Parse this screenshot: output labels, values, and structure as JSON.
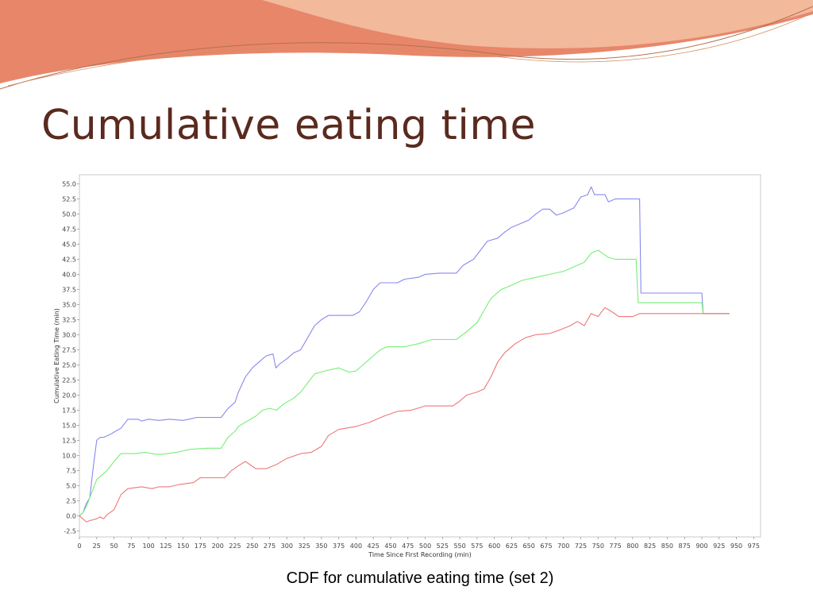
{
  "slide": {
    "title": "Cumulative eating time",
    "caption": "CDF for cumulative eating time (set 2)"
  },
  "theme": {
    "title_color": "#5a2a1e",
    "accent_dark": "#e8866a",
    "accent_light": "#f2b99b"
  },
  "chart_data": {
    "type": "line",
    "title": "",
    "xlabel": "Time Since First Recording (min)",
    "ylabel": "Cumulative Eating Time (min)",
    "xlim": [
      0,
      985
    ],
    "ylim": [
      -3.5,
      56.5
    ],
    "grid": false,
    "legend": "none",
    "x_ticks": [
      0,
      25,
      50,
      75,
      100,
      125,
      150,
      175,
      200,
      225,
      250,
      275,
      300,
      325,
      350,
      375,
      400,
      425,
      450,
      475,
      500,
      525,
      550,
      575,
      600,
      625,
      650,
      675,
      700,
      725,
      750,
      775,
      800,
      825,
      850,
      875,
      900,
      925,
      950,
      975
    ],
    "y_ticks": [
      -2.5,
      0.0,
      2.5,
      5.0,
      7.5,
      10.0,
      12.5,
      15.0,
      17.5,
      20.0,
      22.5,
      25.0,
      27.5,
      30.0,
      32.5,
      35.0,
      37.5,
      40.0,
      42.5,
      45.0,
      47.5,
      50.0,
      52.5,
      55.0
    ],
    "series": [
      {
        "color": "#8888ee",
        "points": [
          [
            0,
            0
          ],
          [
            5,
            0.5
          ],
          [
            10,
            2
          ],
          [
            15,
            3
          ],
          [
            20,
            8
          ],
          [
            25,
            12.5
          ],
          [
            30,
            13
          ],
          [
            35,
            13
          ],
          [
            45,
            13.5
          ],
          [
            55,
            14.2
          ],
          [
            60,
            14.5
          ],
          [
            70,
            16
          ],
          [
            85,
            16
          ],
          [
            90,
            15.7
          ],
          [
            100,
            16
          ],
          [
            115,
            15.8
          ],
          [
            130,
            16
          ],
          [
            150,
            15.8
          ],
          [
            170,
            16.3
          ],
          [
            205,
            16.3
          ],
          [
            215,
            17.8
          ],
          [
            225,
            18.8
          ],
          [
            230,
            20.5
          ],
          [
            240,
            23
          ],
          [
            250,
            24.5
          ],
          [
            260,
            25.5
          ],
          [
            270,
            26.5
          ],
          [
            280,
            26.8
          ],
          [
            284,
            24.5
          ],
          [
            290,
            25.2
          ],
          [
            300,
            26
          ],
          [
            310,
            27
          ],
          [
            320,
            27.5
          ],
          [
            330,
            29.5
          ],
          [
            340,
            31.5
          ],
          [
            350,
            32.5
          ],
          [
            360,
            33.2
          ],
          [
            380,
            33.2
          ],
          [
            395,
            33.2
          ],
          [
            405,
            33.8
          ],
          [
            415,
            35.5
          ],
          [
            425,
            37.5
          ],
          [
            435,
            38.6
          ],
          [
            450,
            38.6
          ],
          [
            460,
            38.6
          ],
          [
            470,
            39.2
          ],
          [
            490,
            39.5
          ],
          [
            500,
            40
          ],
          [
            520,
            40.2
          ],
          [
            545,
            40.2
          ],
          [
            555,
            41.5
          ],
          [
            570,
            42.5
          ],
          [
            580,
            44
          ],
          [
            590,
            45.5
          ],
          [
            605,
            46
          ],
          [
            615,
            47
          ],
          [
            625,
            47.8
          ],
          [
            640,
            48.5
          ],
          [
            650,
            49
          ],
          [
            660,
            50
          ],
          [
            670,
            50.8
          ],
          [
            680,
            50.8
          ],
          [
            690,
            49.8
          ],
          [
            700,
            50.2
          ],
          [
            715,
            51
          ],
          [
            725,
            52.8
          ],
          [
            735,
            53.2
          ],
          [
            740,
            54.5
          ],
          [
            745,
            53.2
          ],
          [
            760,
            53.2
          ],
          [
            765,
            52
          ],
          [
            775,
            52.5
          ],
          [
            810,
            52.5
          ],
          [
            812,
            36.9
          ],
          [
            900,
            36.9
          ],
          [
            902,
            33.5
          ],
          [
            940,
            33.5
          ]
        ]
      },
      {
        "color": "#77ee77",
        "points": [
          [
            0,
            0
          ],
          [
            5,
            0.5
          ],
          [
            10,
            1.5
          ],
          [
            15,
            3
          ],
          [
            20,
            4.5
          ],
          [
            25,
            6
          ],
          [
            30,
            6.5
          ],
          [
            40,
            7.5
          ],
          [
            50,
            9
          ],
          [
            60,
            10.3
          ],
          [
            80,
            10.3
          ],
          [
            95,
            10.5
          ],
          [
            110,
            10.2
          ],
          [
            120,
            10.2
          ],
          [
            140,
            10.5
          ],
          [
            160,
            11
          ],
          [
            185,
            11.2
          ],
          [
            205,
            11.2
          ],
          [
            215,
            13
          ],
          [
            225,
            14
          ],
          [
            230,
            14.8
          ],
          [
            240,
            15.5
          ],
          [
            255,
            16.5
          ],
          [
            265,
            17.5
          ],
          [
            275,
            17.8
          ],
          [
            285,
            17.5
          ],
          [
            295,
            18.5
          ],
          [
            310,
            19.5
          ],
          [
            320,
            20.5
          ],
          [
            330,
            22
          ],
          [
            340,
            23.5
          ],
          [
            355,
            24
          ],
          [
            375,
            24.5
          ],
          [
            390,
            23.8
          ],
          [
            400,
            24
          ],
          [
            415,
            25.5
          ],
          [
            425,
            26.5
          ],
          [
            435,
            27.5
          ],
          [
            445,
            28
          ],
          [
            470,
            28
          ],
          [
            490,
            28.5
          ],
          [
            510,
            29.2
          ],
          [
            545,
            29.2
          ],
          [
            560,
            30.5
          ],
          [
            575,
            32
          ],
          [
            585,
            34
          ],
          [
            595,
            36
          ],
          [
            610,
            37.5
          ],
          [
            625,
            38.2
          ],
          [
            640,
            39
          ],
          [
            660,
            39.5
          ],
          [
            680,
            40
          ],
          [
            700,
            40.5
          ],
          [
            720,
            41.5
          ],
          [
            730,
            42
          ],
          [
            740,
            43.5
          ],
          [
            750,
            44
          ],
          [
            765,
            42.8
          ],
          [
            775,
            42.5
          ],
          [
            805,
            42.5
          ],
          [
            808,
            35.3
          ],
          [
            900,
            35.3
          ],
          [
            902,
            33.5
          ],
          [
            940,
            33.5
          ]
        ]
      },
      {
        "color": "#ee7777",
        "points": [
          [
            0,
            0
          ],
          [
            5,
            -0.5
          ],
          [
            10,
            -1
          ],
          [
            15,
            -0.8
          ],
          [
            25,
            -0.5
          ],
          [
            30,
            -0.2
          ],
          [
            35,
            -0.5
          ],
          [
            40,
            0.2
          ],
          [
            50,
            1
          ],
          [
            60,
            3.5
          ],
          [
            70,
            4.5
          ],
          [
            90,
            4.8
          ],
          [
            105,
            4.5
          ],
          [
            115,
            4.8
          ],
          [
            130,
            4.8
          ],
          [
            145,
            5.2
          ],
          [
            165,
            5.5
          ],
          [
            175,
            6.3
          ],
          [
            210,
            6.3
          ],
          [
            220,
            7.5
          ],
          [
            230,
            8.3
          ],
          [
            240,
            9
          ],
          [
            255,
            7.8
          ],
          [
            270,
            7.8
          ],
          [
            285,
            8.5
          ],
          [
            300,
            9.5
          ],
          [
            320,
            10.3
          ],
          [
            335,
            10.5
          ],
          [
            350,
            11.5
          ],
          [
            360,
            13.3
          ],
          [
            375,
            14.3
          ],
          [
            400,
            14.8
          ],
          [
            420,
            15.5
          ],
          [
            440,
            16.5
          ],
          [
            460,
            17.3
          ],
          [
            480,
            17.5
          ],
          [
            500,
            18.2
          ],
          [
            540,
            18.2
          ],
          [
            550,
            19
          ],
          [
            560,
            20
          ],
          [
            575,
            20.5
          ],
          [
            585,
            21
          ],
          [
            595,
            23
          ],
          [
            605,
            25.5
          ],
          [
            615,
            27
          ],
          [
            630,
            28.5
          ],
          [
            645,
            29.5
          ],
          [
            660,
            30
          ],
          [
            680,
            30.2
          ],
          [
            695,
            30.8
          ],
          [
            710,
            31.5
          ],
          [
            720,
            32.2
          ],
          [
            730,
            31.5
          ],
          [
            740,
            33.5
          ],
          [
            750,
            33
          ],
          [
            760,
            34.5
          ],
          [
            770,
            33.8
          ],
          [
            780,
            33
          ],
          [
            800,
            33
          ],
          [
            810,
            33.5
          ],
          [
            940,
            33.5
          ]
        ]
      }
    ]
  }
}
